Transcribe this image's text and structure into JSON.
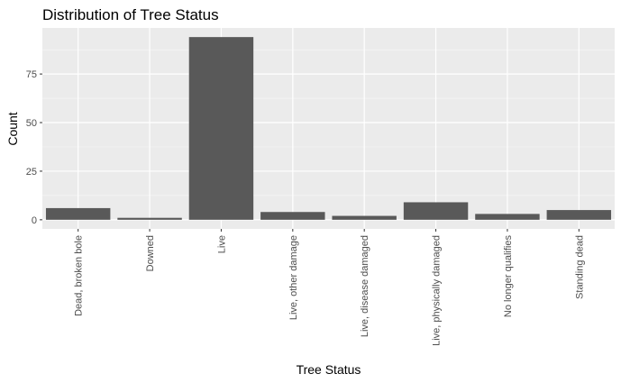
{
  "chart_data": {
    "type": "bar",
    "title": "Distribution of Tree Status",
    "xlabel": "Tree Status",
    "ylabel": "Count",
    "categories": [
      "Dead, broken bole",
      "Downed",
      "Live",
      "Live,  other damage",
      "Live, disease damaged",
      "Live, physically damaged",
      "No longer qualifies",
      "Standing dead"
    ],
    "values": [
      6,
      1,
      94,
      4,
      2,
      9,
      3,
      5
    ],
    "ylim": [
      -4.7,
      98.7
    ],
    "yticks": [
      0,
      25,
      50,
      75
    ],
    "grid": true,
    "legend": "none",
    "colors": {
      "panel_background": "#ebebeb",
      "grid_major": "#ffffff",
      "bar_fill": "#595959",
      "tick_label": "#4d4d4d",
      "text": "#000000"
    }
  }
}
